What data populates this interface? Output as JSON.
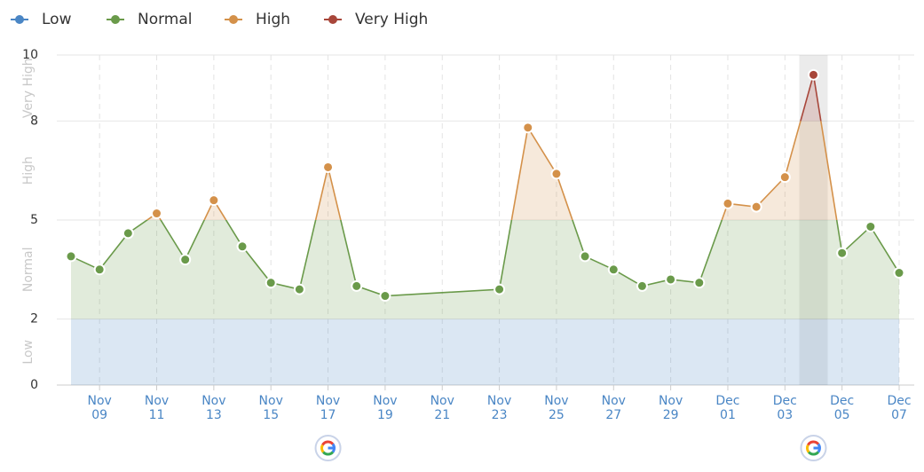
{
  "chart_data": {
    "type": "line",
    "levels": [
      {
        "name": "Low",
        "color": "#4a86c5",
        "from": 0,
        "to": 2
      },
      {
        "name": "Normal",
        "color": "#6a9a4a",
        "from": 2,
        "to": 5
      },
      {
        "name": "High",
        "color": "#d4914a",
        "from": 5,
        "to": 8
      },
      {
        "name": "Very High",
        "color": "#a8463a",
        "from": 8,
        "to": 10
      }
    ],
    "x": [
      "Nov 08",
      "Nov 09",
      "Nov 10",
      "Nov 11",
      "Nov 12",
      "Nov 13",
      "Nov 14",
      "Nov 15",
      "Nov 16",
      "Nov 17",
      "Nov 18",
      "Nov 19",
      "Nov 23",
      "Nov 24",
      "Nov 25",
      "Nov 26",
      "Nov 27",
      "Nov 28",
      "Nov 29",
      "Nov 30",
      "Dec 01",
      "Dec 02",
      "Dec 03",
      "Dec 04",
      "Dec 05",
      "Dec 06",
      "Dec 07"
    ],
    "values": [
      3.9,
      3.5,
      4.6,
      5.2,
      3.8,
      5.6,
      4.2,
      3.1,
      2.9,
      6.6,
      3.0,
      2.7,
      2.9,
      7.8,
      6.4,
      3.9,
      3.5,
      3.0,
      3.2,
      3.1,
      5.5,
      5.4,
      6.3,
      9.4,
      4.0,
      4.8,
      3.4
    ],
    "xticks": [
      "Nov 09",
      "Nov 11",
      "Nov 13",
      "Nov 15",
      "Nov 17",
      "Nov 19",
      "Nov 21",
      "Nov 23",
      "Nov 25",
      "Nov 27",
      "Nov 29",
      "Dec 01",
      "Dec 03",
      "Dec 05",
      "Dec 07"
    ],
    "ylim": [
      0,
      10
    ],
    "yticks": [
      0,
      2,
      5,
      8,
      10
    ],
    "grid": true,
    "highlight": "Dec 04",
    "google_updates": [
      "Nov 17",
      "Dec 04"
    ]
  }
}
